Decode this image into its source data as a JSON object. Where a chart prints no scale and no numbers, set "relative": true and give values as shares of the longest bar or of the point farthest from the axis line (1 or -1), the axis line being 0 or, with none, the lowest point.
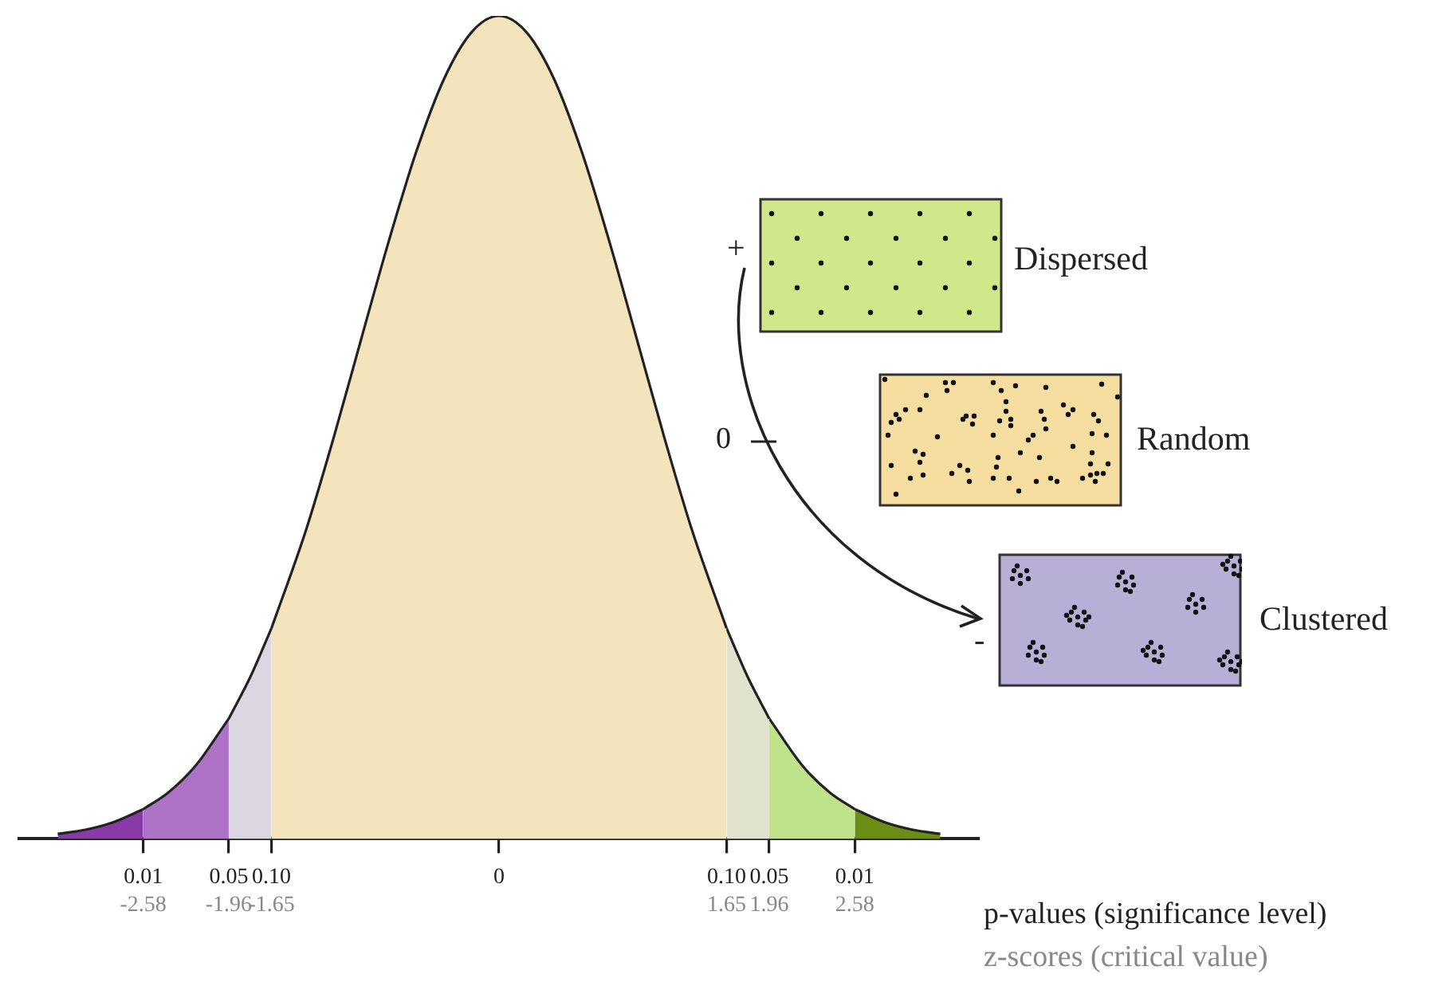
{
  "chart_data": {
    "type": "area",
    "relative": true,
    "legend": false,
    "grid": false,
    "marker": "none",
    "xlim": [
      -3.48,
      3.48
    ],
    "xticks": [
      -2.58,
      -1.96,
      -1.65,
      {
        "value": 0,
        "label": null
      },
      1.65,
      1.96,
      2.58
    ],
    "series": [
      {
        "color": "#8a3aa8",
        "x": [
          -3.2,
          -3.0,
          -2.8,
          -2.58
        ],
        "values": [
          0.006,
          0.011,
          0.02,
          0.036
        ]
      },
      {
        "color": "#ad72c6",
        "x": [
          -2.58,
          -2.4,
          -2.2,
          -1.96
        ],
        "values": [
          0.036,
          0.056,
          0.089,
          0.146
        ]
      },
      {
        "color": "#dcd6e0",
        "x": [
          -1.96,
          -1.8,
          -1.65
        ],
        "values": [
          0.146,
          0.198,
          0.256
        ]
      },
      {
        "color": "#f4e4bc",
        "x": [
          -1.65,
          -1.4,
          -1.2,
          -1.0,
          -0.8,
          -0.6,
          -0.4,
          -0.2,
          0,
          0.2,
          0.4,
          0.6,
          0.8,
          1.0,
          1.2,
          1.4,
          1.65
        ],
        "values": [
          0.256,
          0.375,
          0.487,
          0.607,
          0.726,
          0.835,
          0.923,
          0.98,
          1,
          0.98,
          0.923,
          0.835,
          0.726,
          0.607,
          0.487,
          0.375,
          0.256
        ]
      },
      {
        "color": "#e2e3cf",
        "x": [
          1.65,
          1.8,
          1.96
        ],
        "values": [
          0.256,
          0.198,
          0.146
        ]
      },
      {
        "color": "#bfe38a",
        "x": [
          1.96,
          2.2,
          2.4,
          2.58
        ],
        "values": [
          0.146,
          0.089,
          0.056,
          0.036
        ]
      },
      {
        "color": "#6b8f14",
        "x": [
          2.58,
          2.8,
          3.0,
          3.2
        ],
        "values": [
          0.036,
          0.02,
          0.011,
          0.006
        ]
      }
    ],
    "annotations": [
      {
        "text": "0.01",
        "x": -2.58,
        "y": 0
      },
      {
        "text": "0.05",
        "x": -1.96,
        "y": 0
      },
      {
        "text": "0.10",
        "x": -1.65,
        "y": 0
      },
      {
        "text": "0",
        "x": 0,
        "y": 0
      },
      {
        "text": "0.10",
        "x": 1.65,
        "y": 0
      },
      {
        "text": "0.05",
        "x": 1.96,
        "y": 0
      },
      {
        "text": "0.01",
        "x": 2.58,
        "y": 0
      },
      "p-values (significance level)",
      "z-scores (critical value)",
      "+",
      "0",
      "-",
      "Dispersed",
      "Random",
      "Clustered"
    ]
  }
}
